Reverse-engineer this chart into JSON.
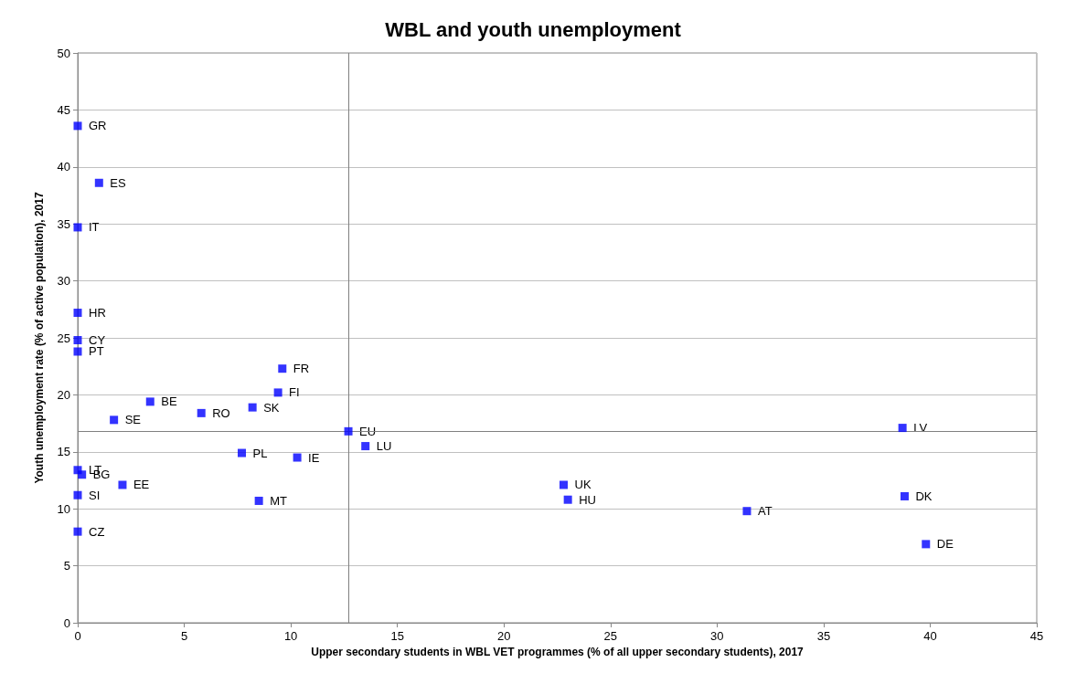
{
  "chart_data": {
    "type": "scatter",
    "title": "WBL and youth unemployment",
    "xlabel": "Upper secondary students in WBL VET programmes (% of all upper secondary students), 2017",
    "ylabel": "Youth unemployment rate (% of active population), 2017",
    "x": [
      0,
      1.0,
      0,
      0,
      0,
      0,
      9.6,
      9.4,
      3.4,
      8.2,
      5.8,
      1.7,
      12.7,
      38.7,
      13.5,
      7.7,
      10.3,
      0,
      0.2,
      2.1,
      22.8,
      0,
      8.5,
      23.0,
      38.8,
      31.4,
      0,
      39.8
    ],
    "values": [
      43.6,
      38.6,
      34.7,
      27.2,
      24.8,
      23.8,
      22.3,
      20.2,
      19.4,
      18.9,
      18.4,
      17.8,
      16.8,
      17.1,
      15.5,
      14.9,
      14.5,
      13.4,
      13.0,
      12.1,
      12.1,
      11.2,
      10.7,
      10.8,
      11.1,
      9.8,
      8.0,
      6.9
    ],
    "color": "#0000ff",
    "marker": "square",
    "annotations": [
      {
        "text": "GR",
        "x": 0,
        "y": 43.6
      },
      {
        "text": "ES",
        "x": 1.0,
        "y": 38.6
      },
      {
        "text": "IT",
        "x": 0,
        "y": 34.7
      },
      {
        "text": "HR",
        "x": 0,
        "y": 27.2
      },
      {
        "text": "CY",
        "x": 0,
        "y": 24.8
      },
      {
        "text": "PT",
        "x": 0,
        "y": 23.8
      },
      {
        "text": "FR",
        "x": 9.6,
        "y": 22.3
      },
      {
        "text": "FI",
        "x": 9.4,
        "y": 20.2
      },
      {
        "text": "BE",
        "x": 3.4,
        "y": 19.4
      },
      {
        "text": "SK",
        "x": 8.2,
        "y": 18.9
      },
      {
        "text": "RO",
        "x": 5.8,
        "y": 18.4
      },
      {
        "text": "SE",
        "x": 1.7,
        "y": 17.8
      },
      {
        "text": "EU",
        "x": 12.7,
        "y": 16.8
      },
      {
        "text": "LV",
        "x": 38.7,
        "y": 17.1
      },
      {
        "text": "LU",
        "x": 13.5,
        "y": 15.5
      },
      {
        "text": "PL",
        "x": 7.7,
        "y": 14.9
      },
      {
        "text": "IE",
        "x": 10.3,
        "y": 14.5
      },
      {
        "text": "LT",
        "x": 0,
        "y": 13.4
      },
      {
        "text": "BG",
        "x": 0.2,
        "y": 13.0
      },
      {
        "text": "EE",
        "x": 2.1,
        "y": 12.1
      },
      {
        "text": "UK",
        "x": 22.8,
        "y": 12.1
      },
      {
        "text": "SI",
        "x": 0,
        "y": 11.2
      },
      {
        "text": "MT",
        "x": 8.5,
        "y": 10.7
      },
      {
        "text": "HU",
        "x": 23.0,
        "y": 10.8
      },
      {
        "text": "DK",
        "x": 38.8,
        "y": 11.1
      },
      {
        "text": "AT",
        "x": 31.4,
        "y": 9.8
      },
      {
        "text": "CZ",
        "x": 0,
        "y": 8.0
      },
      {
        "text": "DE",
        "x": 39.8,
        "y": 6.9
      }
    ],
    "ref_lines": [
      {
        "axis": "x",
        "value": 12.7,
        "color": "#808080"
      },
      {
        "axis": "y",
        "value": 16.8,
        "color": "#808080"
      }
    ],
    "xlim": [
      0,
      45
    ],
    "xticks": [
      0,
      5,
      10,
      15,
      20,
      25,
      30,
      35,
      40,
      45
    ],
    "ylim": [
      0,
      50
    ],
    "yticks": [
      0,
      5,
      10,
      15,
      20,
      25,
      30,
      35,
      40,
      45,
      50
    ],
    "grid": "y"
  }
}
